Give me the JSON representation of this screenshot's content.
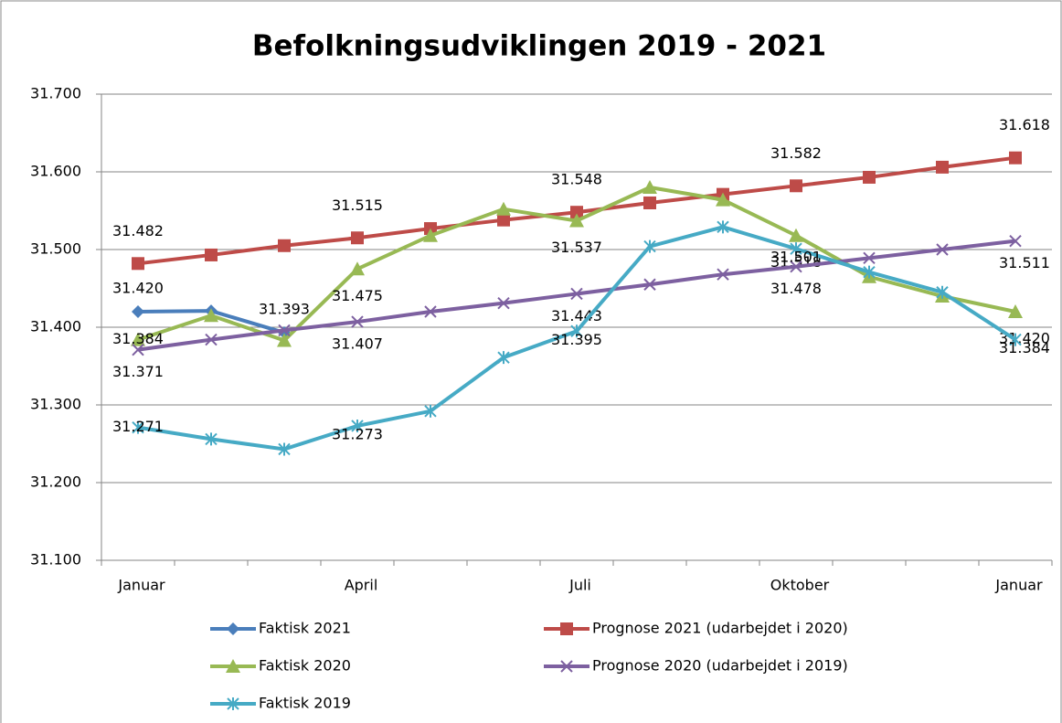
{
  "chart_data": {
    "type": "line",
    "title": "Befolkningsudviklingen 2019 - 2021",
    "categories": [
      "Januar",
      null,
      null,
      "April",
      null,
      null,
      "Juli",
      null,
      null,
      "Oktober",
      null,
      null,
      "Januar"
    ],
    "ylim": [
      31100,
      31700
    ],
    "yticks": [
      {
        "value": 31100,
        "label": "31.100"
      },
      {
        "value": 31200,
        "label": "31.200"
      },
      {
        "value": 31300,
        "label": "31.300"
      },
      {
        "value": 31400,
        "label": "31.400"
      },
      {
        "value": 31500,
        "label": "31.500"
      },
      {
        "value": 31600,
        "label": "31.600"
      },
      {
        "value": 31700,
        "label": "31.700"
      }
    ],
    "grid": true,
    "series": [
      {
        "name": "Faktisk 2021",
        "color": "#4a7ebb",
        "marker": "diamond",
        "values": [
          31420,
          31421,
          31393,
          null,
          null,
          null,
          null,
          null,
          null,
          null,
          null,
          null,
          null
        ],
        "value_labels": [
          "31.420",
          null,
          "31.393",
          null,
          null,
          null,
          null,
          null,
          null,
          null,
          null,
          null,
          null
        ]
      },
      {
        "name": "Prognose 2021 (udarbejdet i 2020)",
        "color": "#be4b48",
        "marker": "square",
        "values": [
          31482,
          31493,
          31505,
          31515,
          31527,
          31538,
          31548,
          31560,
          31571,
          31582,
          31593,
          31606,
          31618
        ],
        "value_labels": [
          "31.482",
          null,
          null,
          "31.515",
          null,
          null,
          "31.548",
          null,
          null,
          "31.582",
          null,
          null,
          "31.618"
        ]
      },
      {
        "name": "Faktisk 2020",
        "color": "#98b954",
        "marker": "triangle",
        "values": [
          31384,
          31415,
          31383,
          31475,
          31518,
          31552,
          31537,
          31580,
          31564,
          31518,
          31465,
          31440,
          31420
        ],
        "value_labels": [
          "31.384",
          null,
          null,
          "31.475",
          null,
          null,
          "31.537",
          null,
          null,
          "31.518",
          null,
          null,
          "31.420"
        ]
      },
      {
        "name": "Prognose 2020 (udarbejdet i 2019)",
        "color": "#7d60a0",
        "marker": "x",
        "values": [
          31371,
          31384,
          31396,
          31407,
          31420,
          31431,
          31443,
          31455,
          31468,
          31478,
          31489,
          31500,
          31511
        ],
        "value_labels": [
          "31.371",
          null,
          null,
          "31.407",
          null,
          null,
          "31.443",
          null,
          null,
          "31.478",
          null,
          null,
          "31.511"
        ]
      },
      {
        "name": "Faktisk 2019",
        "color": "#46aac5",
        "marker": "star",
        "values": [
          31271,
          31256,
          31243,
          31273,
          31292,
          31361,
          31395,
          31504,
          31529,
          31501,
          31471,
          31445,
          31384
        ],
        "value_labels": [
          "31.271",
          null,
          null,
          "31.273",
          null,
          null,
          "31.395",
          null,
          null,
          "31.501",
          null,
          null,
          "31.384"
        ]
      }
    ]
  }
}
